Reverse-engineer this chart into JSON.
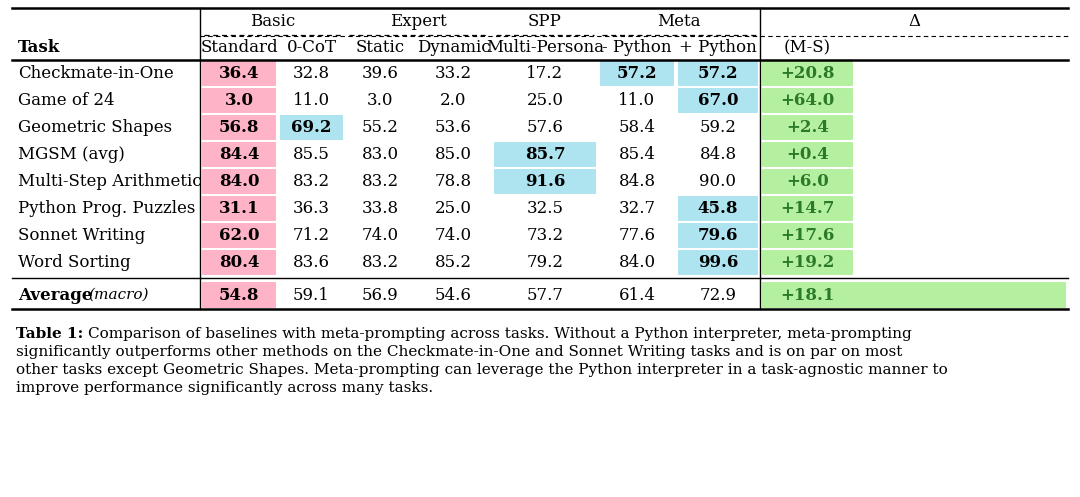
{
  "headers_sub": [
    "Task",
    "Standard",
    "0-CoT",
    "Static",
    "Dynamic",
    "Multi-Persona",
    "- Python",
    "+ Python",
    "(M-S)"
  ],
  "rows": [
    [
      "Checkmate-in-One",
      "36.4",
      "32.8",
      "39.6",
      "33.2",
      "17.2",
      "57.2",
      "57.2",
      "+20.8"
    ],
    [
      "Game of 24",
      "3.0",
      "11.0",
      "3.0",
      "2.0",
      "25.0",
      "11.0",
      "67.0",
      "+64.0"
    ],
    [
      "Geometric Shapes",
      "56.8",
      "69.2",
      "55.2",
      "53.6",
      "57.6",
      "58.4",
      "59.2",
      "+2.4"
    ],
    [
      "MGSM (avg)",
      "84.4",
      "85.5",
      "83.0",
      "85.0",
      "85.7",
      "85.4",
      "84.8",
      "+0.4"
    ],
    [
      "Multi-Step Arithmetic",
      "84.0",
      "83.2",
      "83.2",
      "78.8",
      "91.6",
      "84.8",
      "90.0",
      "+6.0"
    ],
    [
      "Python Prog. Puzzles",
      "31.1",
      "36.3",
      "33.8",
      "25.0",
      "32.5",
      "32.7",
      "45.8",
      "+14.7"
    ],
    [
      "Sonnet Writing",
      "62.0",
      "71.2",
      "74.0",
      "74.0",
      "73.2",
      "77.6",
      "79.6",
      "+17.6"
    ],
    [
      "Word Sorting",
      "80.4",
      "83.6",
      "83.2",
      "85.2",
      "79.2",
      "84.0",
      "99.6",
      "+19.2"
    ]
  ],
  "avg_row": [
    "Average",
    "macro",
    "54.8",
    "59.1",
    "56.9",
    "54.6",
    "57.7",
    "61.4",
    "72.9",
    "+18.1"
  ],
  "cell_highlights": {
    "0_1": "pink",
    "1_1": "pink",
    "2_1": "pink",
    "3_1": "pink",
    "4_1": "pink",
    "5_1": "pink",
    "6_1": "pink",
    "7_1": "pink",
    "avg_1": "pink",
    "2_2": "lightblue",
    "3_5": "lightblue",
    "4_5": "lightblue",
    "0_6": "lightblue",
    "0_7": "lightblue",
    "1_7": "lightblue",
    "5_7": "lightblue",
    "6_7": "lightblue",
    "7_7": "lightblue",
    "0_8": "lightgreen",
    "1_8": "lightgreen",
    "2_8": "lightgreen",
    "3_8": "lightgreen",
    "4_8": "lightgreen",
    "5_8": "lightgreen",
    "6_8": "lightgreen",
    "7_8": "lightgreen",
    "avg_8": "lightgreen"
  },
  "bold_cells": {
    "0_1": true,
    "1_1": true,
    "2_1": true,
    "3_1": true,
    "4_1": true,
    "5_1": true,
    "6_1": true,
    "7_1": true,
    "avg_1": true,
    "2_2": true,
    "3_5": true,
    "4_5": true,
    "0_6": true,
    "0_7": true,
    "1_7": true,
    "5_7": true,
    "6_7": true,
    "7_7": true
  },
  "pink_color": "#FFB3C6",
  "blue_color": "#ADE4F0",
  "green_color": "#B5F0A0",
  "bg_color": "#ffffff"
}
